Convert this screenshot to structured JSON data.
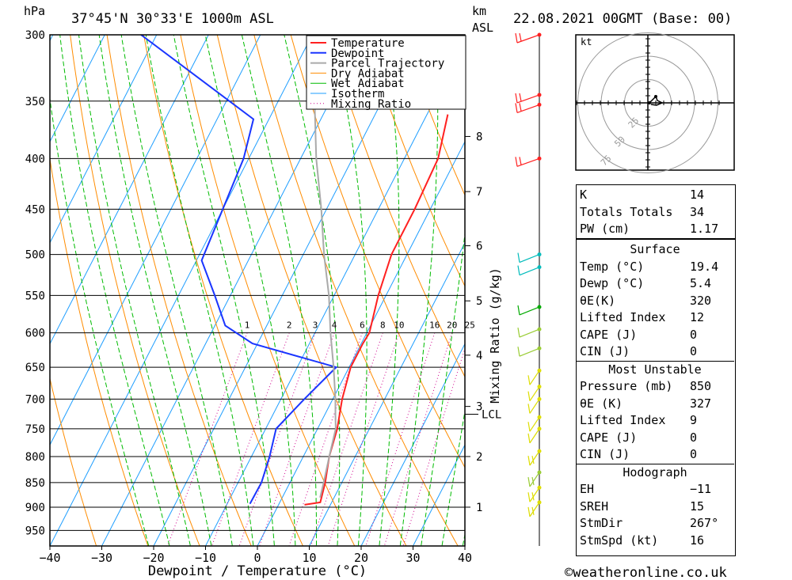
{
  "header": {
    "pressure_unit": "hPa",
    "location": "37°45'N  30°33'E  1000m  ASL",
    "height_unit_line1": "km",
    "height_unit_line2": "ASL",
    "datetime": "22.08.2021  00GMT  (Base: 00)"
  },
  "chart_data": {
    "type": "skew-t log-p sounding",
    "xlabel": "Dewpoint / Temperature (°C)",
    "ylabel": "hPa",
    "right_axis_label": "Mixing Ratio (g/kg)",
    "temperature_range": [
      -40,
      40
    ],
    "pressure_range": [
      300,
      985
    ],
    "x_ticks": [
      "−40",
      "−30",
      "−20",
      "−10",
      "0",
      "10",
      "20",
      "30",
      "40"
    ],
    "pressure_levels": [
      300,
      350,
      400,
      450,
      500,
      550,
      600,
      650,
      700,
      750,
      800,
      850,
      900,
      950
    ],
    "height_ticks_km": [
      {
        "label": "8",
        "p": 380
      },
      {
        "label": "7",
        "p": 432
      },
      {
        "label": "6",
        "p": 490
      },
      {
        "label": "5",
        "p": 557
      },
      {
        "label": "4",
        "p": 632
      },
      {
        "label": "3",
        "p": 712
      },
      {
        "label": "2",
        "p": 800
      },
      {
        "label": "1",
        "p": 900
      }
    ],
    "lcl": {
      "label": "LCL",
      "p": 725
    },
    "mixing_ratio_labels": [
      "1",
      "2",
      "3",
      "4",
      "6",
      "8",
      "10",
      "16",
      "20",
      "25"
    ],
    "mixing_ratio_values": [
      1,
      2,
      3,
      4,
      6,
      8,
      10,
      16,
      20,
      25
    ],
    "legend": [
      "Temperature",
      "Dewpoint",
      "Parcel Trajectory",
      "Dry Adiabat",
      "Wet Adiabat",
      "Isotherm",
      "Mixing Ratio"
    ],
    "colors": {
      "temperature": "#ff2020",
      "dewpoint": "#1a35ff",
      "parcel": "#aaaaaa",
      "dry_adiabat": "#ff8c00",
      "wet_adiabat": "#00bb00",
      "isotherm": "#1e9eff",
      "mixing_ratio": "#d0008c"
    },
    "series": [
      {
        "name": "Temperature",
        "points": [
          [
            361,
            -6.0
          ],
          [
            400,
            -3.5
          ],
          [
            450,
            -3.0
          ],
          [
            500,
            -3.0
          ],
          [
            550,
            -1.5
          ],
          [
            600,
            0.5
          ],
          [
            615,
            0.3
          ],
          [
            650,
            0.3
          ],
          [
            700,
            1.8
          ],
          [
            750,
            3.8
          ],
          [
            800,
            5.0
          ],
          [
            850,
            6.8
          ],
          [
            890,
            7.8
          ],
          [
            895,
            5.0
          ]
        ]
      },
      {
        "name": "Dewpoint",
        "points": [
          [
            300,
            -73
          ],
          [
            365,
            -43
          ],
          [
            400,
            -41
          ],
          [
            450,
            -40
          ],
          [
            507,
            -39
          ],
          [
            550,
            -33
          ],
          [
            590,
            -28
          ],
          [
            615,
            -21
          ],
          [
            650,
            -2.5
          ],
          [
            700,
            -5.5
          ],
          [
            750,
            -8.0
          ],
          [
            800,
            -6.5
          ],
          [
            850,
            -5.5
          ],
          [
            893,
            -5.6
          ]
        ]
      },
      {
        "name": "Parcel Trajectory",
        "points": [
          [
            300,
            -40
          ],
          [
            350,
            -33
          ],
          [
            400,
            -27
          ],
          [
            450,
            -21
          ],
          [
            500,
            -16
          ],
          [
            550,
            -11
          ],
          [
            600,
            -7
          ],
          [
            650,
            -3
          ],
          [
            700,
            0.5
          ],
          [
            725,
            2.0
          ],
          [
            750,
            3.5
          ],
          [
            800,
            5.0
          ],
          [
            850,
            6.5
          ],
          [
            880,
            7.3
          ]
        ]
      }
    ],
    "wind_barbs": [
      {
        "p": 300,
        "color": "#ff2020"
      },
      {
        "p": 345,
        "color": "#ff2020"
      },
      {
        "p": 353,
        "color": "#ff2020"
      },
      {
        "p": 400,
        "color": "#ff2020"
      },
      {
        "p": 500,
        "color": "#00bbbb"
      },
      {
        "p": 515,
        "color": "#00bbbb"
      },
      {
        "p": 565,
        "color": "#00aa00"
      },
      {
        "p": 595,
        "color": "#99cc33"
      },
      {
        "p": 622,
        "color": "#99cc33"
      },
      {
        "p": 655,
        "color": "#dddd00"
      },
      {
        "p": 680,
        "color": "#dddd00"
      },
      {
        "p": 700,
        "color": "#dddd00"
      },
      {
        "p": 730,
        "color": "#dddd00"
      },
      {
        "p": 750,
        "color": "#dddd00"
      },
      {
        "p": 790,
        "color": "#dddd00"
      },
      {
        "p": 830,
        "color": "#99cc33"
      },
      {
        "p": 860,
        "color": "#dddd00"
      },
      {
        "p": 890,
        "color": "#dddd00"
      }
    ]
  },
  "hodograph": {
    "unit": "kt",
    "ring_labels": [
      "25",
      "50",
      "75"
    ]
  },
  "indices": [
    {
      "label": "K",
      "value": "14"
    },
    {
      "label": "Totals Totals",
      "value": "34"
    },
    {
      "label": "PW (cm)",
      "value": "1.17"
    }
  ],
  "surface": {
    "title": "Surface",
    "rows": [
      {
        "label": "Temp (°C)",
        "value": "19.4"
      },
      {
        "label": "Dewp (°C)",
        "value": "5.4"
      },
      {
        "label": "θE(K)",
        "value": "320"
      },
      {
        "label": "Lifted Index",
        "value": "12"
      },
      {
        "label": "CAPE (J)",
        "value": "0"
      },
      {
        "label": "CIN (J)",
        "value": "0"
      }
    ]
  },
  "most_unstable": {
    "title": "Most Unstable",
    "rows": [
      {
        "label": "Pressure (mb)",
        "value": "850"
      },
      {
        "label": "θE (K)",
        "value": "327"
      },
      {
        "label": "Lifted Index",
        "value": "9"
      },
      {
        "label": "CAPE (J)",
        "value": "0"
      },
      {
        "label": "CIN (J)",
        "value": "0"
      }
    ]
  },
  "hodograph_stats": {
    "title": "Hodograph",
    "rows": [
      {
        "label": "EH",
        "value": "−11"
      },
      {
        "label": "SREH",
        "value": "15"
      },
      {
        "label": "StmDir",
        "value": "267°"
      },
      {
        "label": "StmSpd (kt)",
        "value": "16"
      }
    ]
  },
  "footer": {
    "copyright": "©weatheronline.co.uk"
  }
}
